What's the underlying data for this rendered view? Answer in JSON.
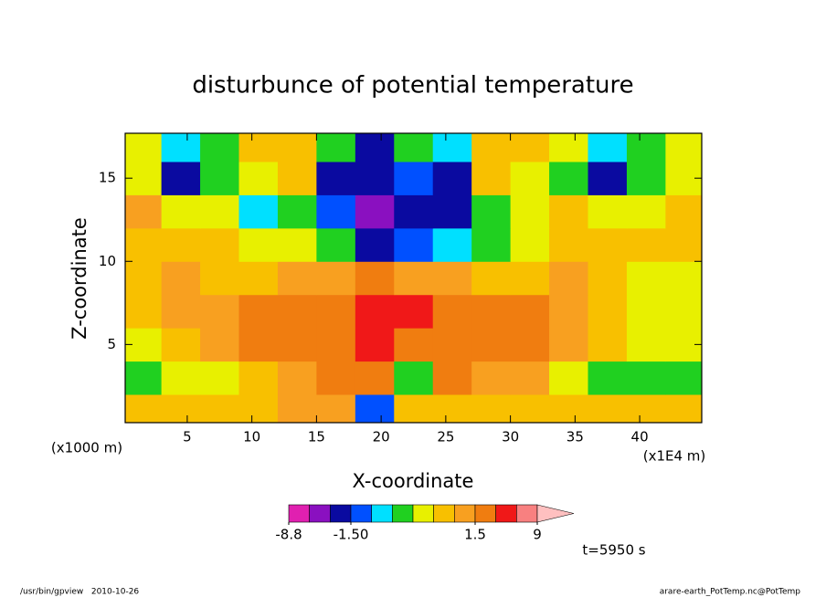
{
  "chart_data": {
    "type": "contour",
    "title": "disturbunce of potential temperature",
    "x_label": "X-coordinate",
    "y_label": "Z-coordinate",
    "x_unit": "(x1E4 m)",
    "y_unit": "(x1000 m)",
    "time_label": "t=5950 s",
    "footer_left": "/usr/bin/gpview   2010-10-26",
    "footer_right": "arare-earth_PotTemp.nc@PotTemp",
    "xlim": [
      0.2,
      44.8
    ],
    "ylim": [
      0.3,
      17.7
    ],
    "xticks": [
      5,
      10,
      15,
      20,
      25,
      30,
      35,
      40
    ],
    "yticks": [
      5,
      10,
      15
    ],
    "x": [
      1.5,
      4.5,
      7.5,
      10.5,
      13.5,
      16.5,
      19.5,
      22.5,
      25.5,
      28.5,
      31.5,
      34.5,
      37.5,
      40.5,
      43.5
    ],
    "y": [
      1,
      3,
      5,
      7,
      9,
      11,
      13,
      15,
      17
    ],
    "z": [
      [
        0.8,
        0.8,
        0.8,
        0.8,
        1.2,
        1.2,
        -1.2,
        0.5,
        0.5,
        0.8,
        0.8,
        0.8,
        0.8,
        0.8,
        0.8
      ],
      [
        -0.3,
        0.3,
        0.3,
        0.8,
        1.2,
        2,
        2,
        -0.3,
        2,
        1.2,
        1.2,
        0.3,
        -0.3,
        -0.3,
        -0.3
      ],
      [
        0.3,
        0.8,
        1.2,
        2,
        2,
        2,
        4,
        2,
        2,
        2,
        2,
        1.2,
        0.8,
        0.3,
        0.3
      ],
      [
        0.8,
        1.2,
        1.2,
        2,
        2,
        2,
        4,
        4,
        2,
        2,
        2,
        1.2,
        0.8,
        0.3,
        0.3
      ],
      [
        0.8,
        1.2,
        0.8,
        0.8,
        1.2,
        1.2,
        2,
        1.2,
        1.2,
        0.8,
        0.8,
        1.2,
        0.8,
        0.3,
        0.3
      ],
      [
        0.8,
        0.8,
        0.8,
        0.3,
        0.3,
        -0.3,
        -2,
        -1.2,
        -0.8,
        -0.3,
        0.3,
        0.8,
        0.8,
        0.8,
        0.8
      ],
      [
        1.2,
        0.3,
        0.3,
        -0.8,
        -0.3,
        -1.2,
        -4,
        -2,
        -2,
        -0.3,
        0.3,
        0.8,
        0.3,
        0.3,
        0.8
      ],
      [
        0.3,
        -2,
        -0.3,
        0.3,
        0.8,
        -2,
        -2,
        -1.2,
        -2,
        0.8,
        0.3,
        -0.3,
        -2,
        -0.3,
        0.3
      ],
      [
        0.3,
        -0.8,
        -0.3,
        0.8,
        0.8,
        -0.3,
        -2,
        -0.3,
        -0.8,
        0.8,
        0.8,
        0.3,
        -0.8,
        -0.3,
        0.3
      ]
    ],
    "colorbar": {
      "levels": [
        -8.8,
        -6,
        -3,
        -1.5,
        -1,
        -0.5,
        0,
        0.5,
        1,
        1.5,
        3,
        6,
        9
      ],
      "colors": [
        "#e020b0",
        "#8a10c0",
        "#0a0aa0",
        "#0050ff",
        "#00e0ff",
        "#20d020",
        "#e8f000",
        "#f8c000",
        "#f8a020",
        "#f07d10",
        "#f01818",
        "#f88080"
      ],
      "extend_color": "#ffc0c0",
      "ticks": [
        -8.8,
        {
          "value": -1.5,
          "label": "-1.50"
        },
        1.5,
        9
      ]
    }
  }
}
